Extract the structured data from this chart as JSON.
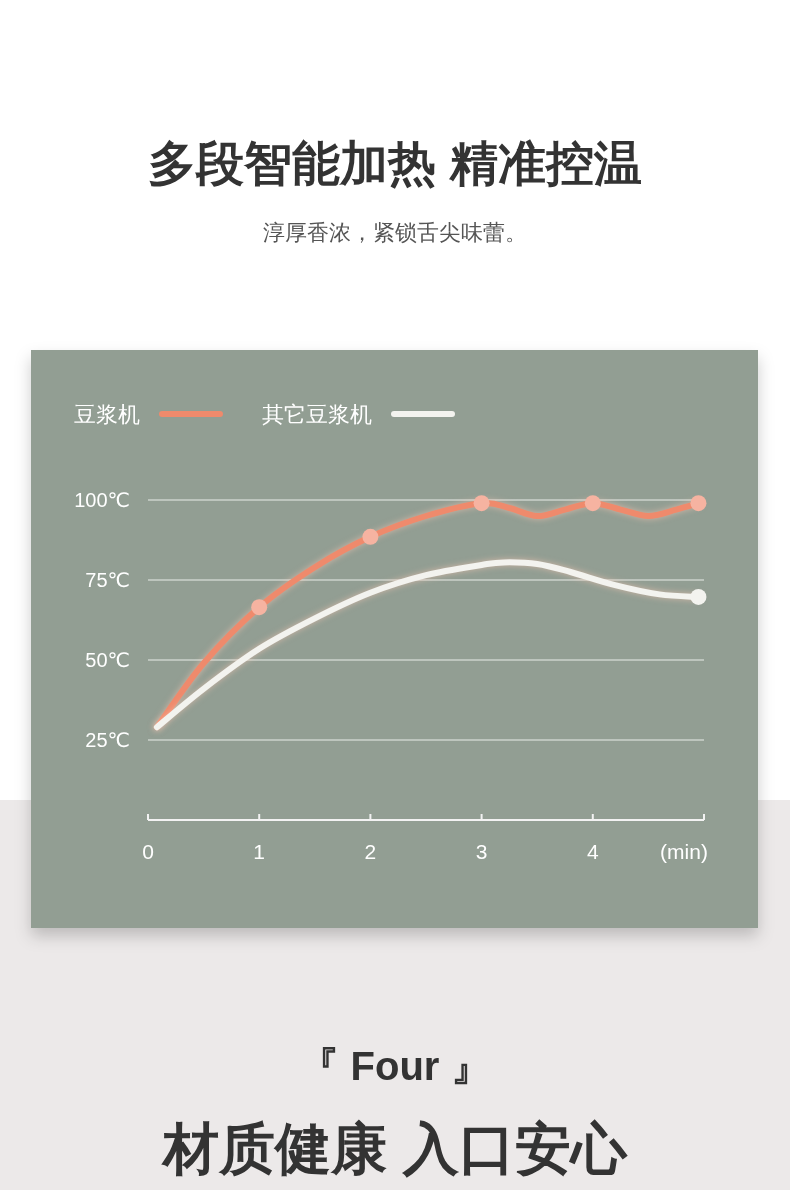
{
  "chart_data": {
    "type": "line",
    "title": "多段智能加热 精准控温",
    "subtitle": "淳厚香浓，紧锁舌尖味蕾。",
    "xlabel": "(min)",
    "annotations": [
      "『 Four 』",
      "材质健康 入口安心"
    ],
    "xlim": [
      0,
      5
    ],
    "xticks": [
      0,
      1,
      2,
      3,
      4
    ],
    "ylim": [
      0,
      100
    ],
    "yticks": [
      {
        "value": 25,
        "label": "25℃"
      },
      {
        "value": 50,
        "label": "50℃"
      },
      {
        "value": 75,
        "label": "75℃"
      },
      {
        "value": 100,
        "label": "100℃"
      }
    ],
    "grid": "y",
    "legend": "top left",
    "series": [
      {
        "name": "豆浆机",
        "color": "#ef8a6c",
        "type": "line",
        "x": [
          0.08,
          0.5,
          1,
          1.5,
          2,
          2.5,
          3,
          3.25,
          3.5,
          3.75,
          4,
          4.25,
          4.5,
          4.75,
          4.95
        ],
        "values": [
          29,
          49,
          66.5,
          79,
          88.5,
          95,
          99,
          97.5,
          95,
          97,
          99,
          97,
          95,
          97,
          99
        ]
      },
      {
        "name": "其它豆浆机",
        "color": "#f3f3ef",
        "type": "line",
        "x": [
          0.08,
          0.5,
          1,
          1.5,
          2,
          2.5,
          3,
          3.2,
          3.5,
          3.8,
          4.2,
          4.6,
          4.95
        ],
        "values": [
          29,
          41,
          53.5,
          63,
          71,
          76.5,
          79.7,
          80.5,
          80,
          77.5,
          73.4,
          70.5,
          69.7
        ]
      },
      {
        "color": "#f6b3a1",
        "type": "scatter",
        "x": [
          1,
          2,
          3,
          4,
          4.95
        ],
        "values": [
          66.5,
          88.5,
          99,
          99,
          99
        ]
      },
      {
        "color": "#f3f3ef",
        "type": "scatter",
        "x": [
          4.95
        ],
        "values": [
          69.7
        ]
      }
    ]
  }
}
